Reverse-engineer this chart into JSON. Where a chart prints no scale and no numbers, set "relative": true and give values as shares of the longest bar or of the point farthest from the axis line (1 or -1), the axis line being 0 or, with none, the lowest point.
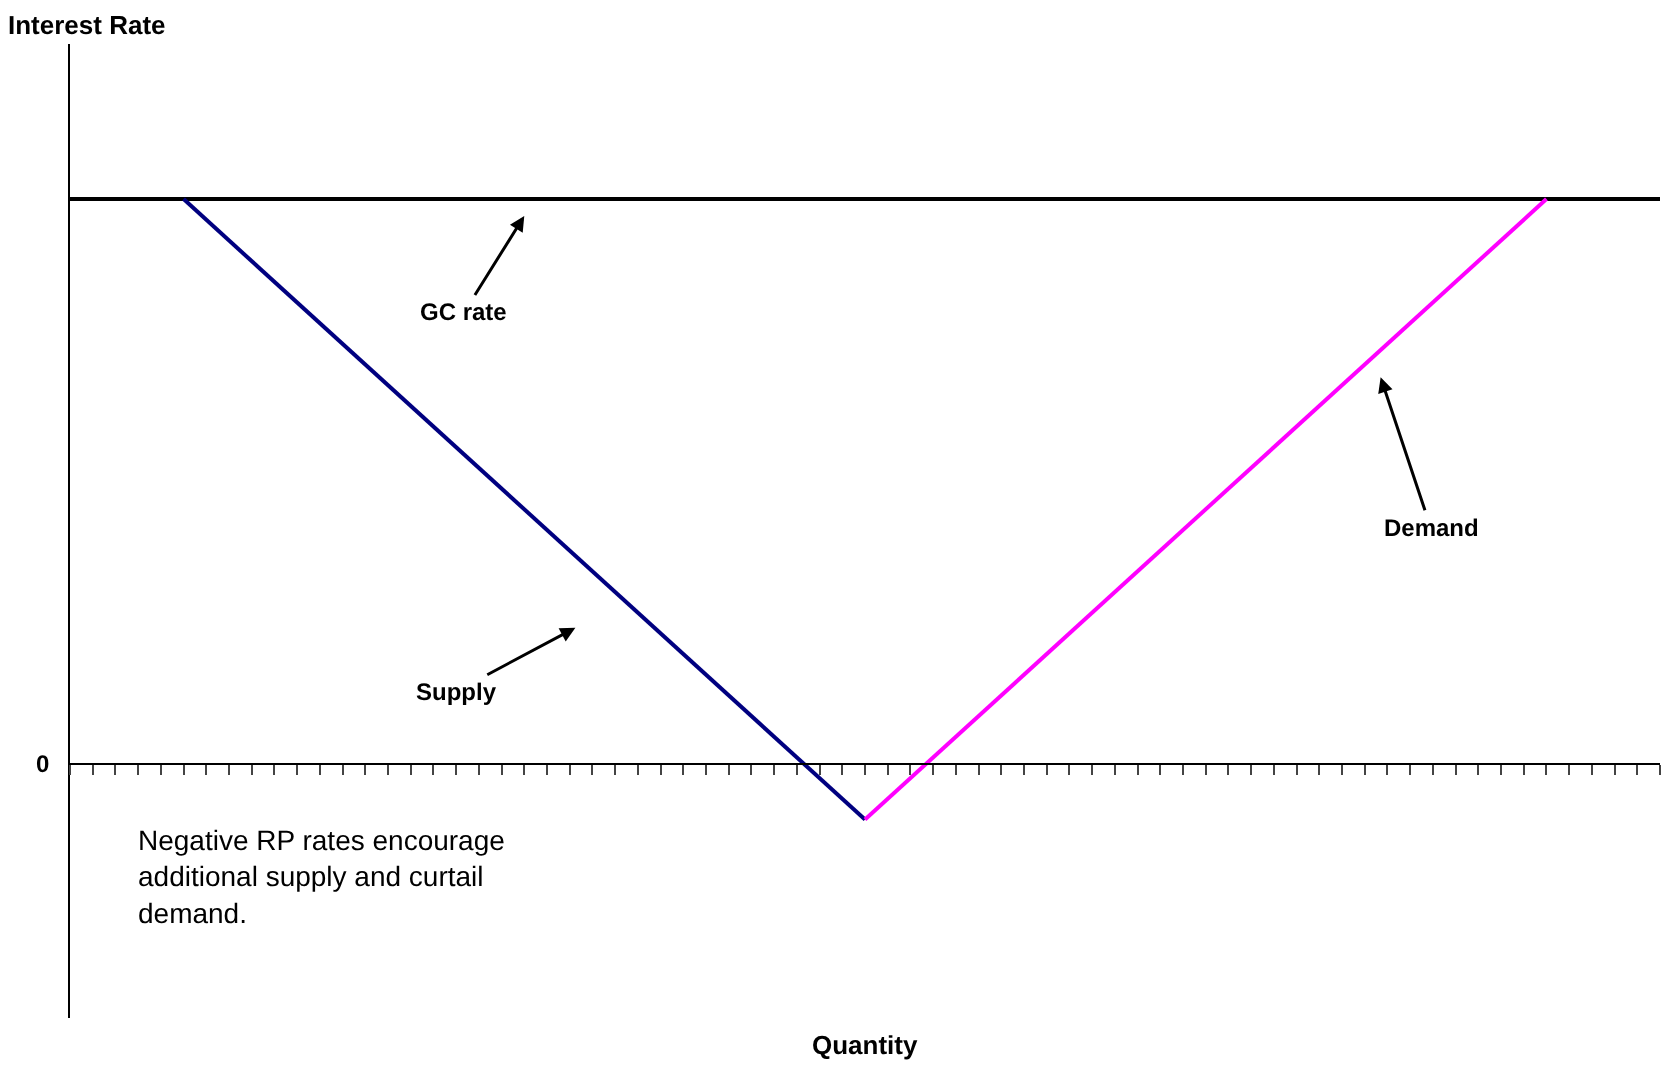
{
  "chart_data": {
    "type": "line",
    "relative": true,
    "categories": [
      null,
      null,
      null,
      null,
      null,
      null,
      null,
      null,
      null,
      null,
      null,
      null,
      null,
      null,
      null
    ],
    "series": [
      {
        "color": "#000000",
        "values": [
          1,
          1,
          1,
          1,
          1,
          1,
          1,
          1,
          1,
          1,
          1,
          1,
          1,
          1,
          1
        ]
      },
      {
        "color": "#000080",
        "values": [
          null,
          1,
          null,
          null,
          null,
          null,
          null,
          -0.1,
          null,
          null,
          null,
          null,
          null,
          null,
          null
        ]
      },
      {
        "color": "#ff00ff",
        "values": [
          null,
          null,
          null,
          null,
          null,
          null,
          null,
          -0.1,
          null,
          null,
          null,
          null,
          null,
          1,
          null
        ]
      }
    ],
    "annotations": [
      "0",
      "GC rate",
      "Supply",
      "Demand",
      "Negative RP rates encourage additional supply and curtail demand.",
      "Interest Rate",
      "Quantity"
    ],
    "marker": "none",
    "line_style": "solid"
  }
}
